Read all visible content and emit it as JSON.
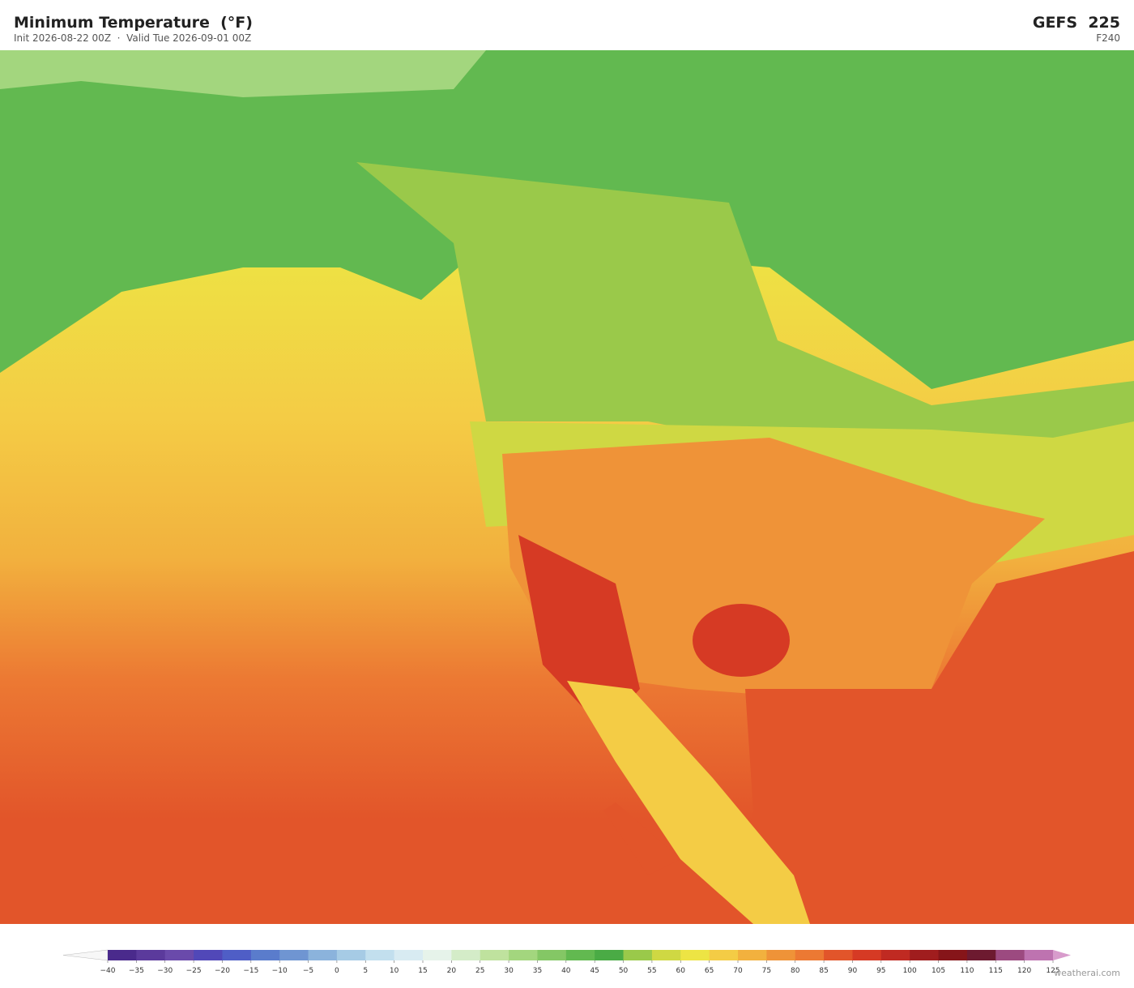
{
  "header": {
    "title": "Minimum Temperature  (°F)",
    "subtitle": "Init 2026-08-22 00Z  ·  Valid Tue 2026-09-01 00Z",
    "model": "GEFS  225",
    "forecast_hour": "F240"
  },
  "colorbar": {
    "ticks": [
      {
        "value": -40,
        "label": "−40"
      },
      {
        "value": -35,
        "label": "−35"
      },
      {
        "value": -30,
        "label": "−30"
      },
      {
        "value": -25,
        "label": "−25"
      },
      {
        "value": -20,
        "label": "−20"
      },
      {
        "value": -15,
        "label": "−15"
      },
      {
        "value": -10,
        "label": "−10"
      },
      {
        "value": -5,
        "label": "−5"
      },
      0,
      5,
      10,
      15,
      20,
      25,
      30,
      35,
      40,
      45,
      50,
      55,
      60,
      65,
      70,
      75,
      80,
      85,
      90,
      95,
      100,
      105,
      110,
      115,
      120,
      125
    ],
    "colors": [
      "#4a2a8c",
      "#5b3a9c",
      "#6a4aab",
      "#5148b8",
      "#4f5ec6",
      "#5a7ccc",
      "#6f95d2",
      "#8bb3dc",
      "#a6cbe5",
      "#c2dfee",
      "#d8ebf2",
      "#e6f3ea",
      "#d4ecc8",
      "#bfe29e",
      "#a3d67e",
      "#84c765",
      "#62b950",
      "#4aab45",
      "#9ac94a",
      "#cfd843",
      "#ede444",
      "#f4cc45",
      "#f2b13e",
      "#ef9338",
      "#ec7933",
      "#e2552a",
      "#d63a24",
      "#c02a22",
      "#a01d1e",
      "#861519",
      "#6d1a30",
      "#9c4a80",
      "#be73b0",
      "#d89ccc"
    ]
  },
  "footer": {
    "watermark": "weatherai.com"
  }
}
